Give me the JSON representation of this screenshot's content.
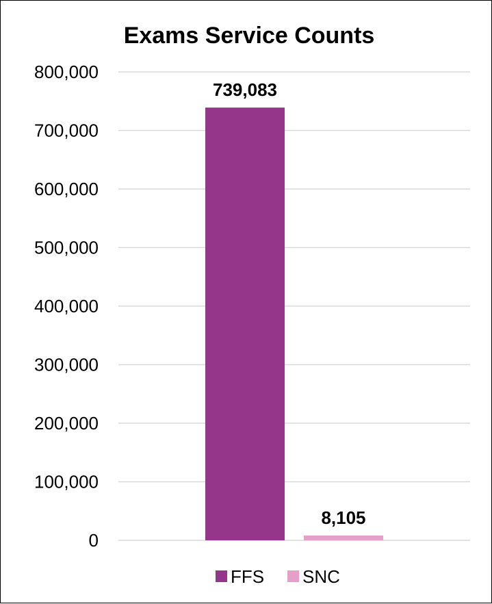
{
  "chart_data": {
    "type": "bar",
    "title": "Exams Service Counts",
    "xlabel": "",
    "ylabel": "",
    "categories": [
      "FFS",
      "SNC"
    ],
    "values": [
      739083,
      8105
    ],
    "data_labels": [
      "739,083",
      "8,105"
    ],
    "colors": [
      "#96368A",
      "#E4A0C8"
    ],
    "ylim": [
      0,
      800000
    ],
    "yticks": [
      0,
      100000,
      200000,
      300000,
      400000,
      500000,
      600000,
      700000,
      800000
    ],
    "ytick_labels": [
      "0",
      "100,000",
      "200,000",
      "300,000",
      "400,000",
      "500,000",
      "600,000",
      "700,000",
      "800,000"
    ],
    "grid": true,
    "legend": {
      "placement": "bottom",
      "entries": [
        "FFS",
        "SNC"
      ]
    }
  }
}
